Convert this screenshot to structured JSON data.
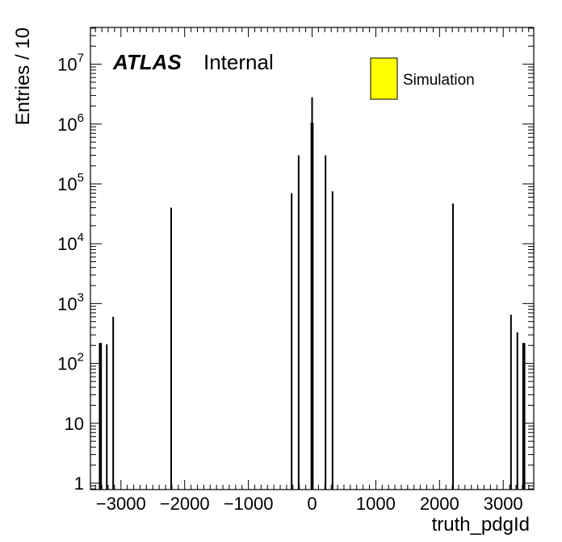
{
  "chart_data": {
    "type": "bar",
    "title": "",
    "xlabel": "truth_pdgId",
    "ylabel": "Entries / 10",
    "xlim": [
      -3400,
      3400
    ],
    "ylim": [
      0.8,
      40000000
    ],
    "yscale": "log",
    "x_ticks": [
      -3000,
      -2000,
      -1000,
      0,
      1000,
      2000,
      3000
    ],
    "x_tick_labels": [
      "−3000",
      "−2000",
      "−1000",
      "0",
      "1000",
      "2000",
      "3000"
    ],
    "y_ticks": [
      {
        "value": 1,
        "base": "1",
        "exp": ""
      },
      {
        "value": 10,
        "base": "10",
        "exp": ""
      },
      {
        "value": 100,
        "base": "10",
        "exp": "2"
      },
      {
        "value": 1000,
        "base": "10",
        "exp": "3"
      },
      {
        "value": 10000,
        "base": "10",
        "exp": "4"
      },
      {
        "value": 100000,
        "base": "10",
        "exp": "5"
      },
      {
        "value": 1000000,
        "base": "10",
        "exp": "6"
      },
      {
        "value": 10000000,
        "base": "10",
        "exp": "7"
      }
    ],
    "annotation": {
      "bold": "ATLAS",
      "normal": "Internal"
    },
    "legend": {
      "label": "Simulation",
      "color": "#ffff00",
      "position": "top-right"
    },
    "series": [
      {
        "x": [
          -3334,
          -3312,
          -3222,
          -3122,
          -2212,
          -321,
          -211,
          -11,
          0,
          11,
          211,
          321,
          2212,
          3122,
          3222,
          3312,
          3334
        ],
        "values": [
          220,
          220,
          210,
          600,
          40000,
          70000,
          300000,
          1050000,
          2800000,
          1050000,
          300000,
          75000,
          47000,
          650,
          330,
          220,
          220
        ]
      }
    ]
  }
}
